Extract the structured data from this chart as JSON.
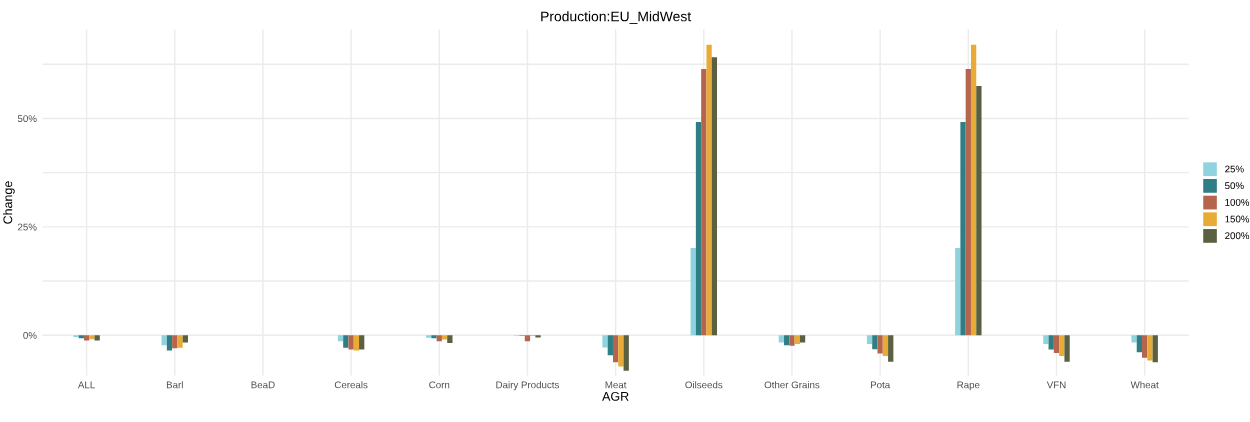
{
  "chart_data": {
    "type": "bar",
    "title": "Production:EU_MidWest",
    "xlabel": "AGR",
    "ylabel": "Change",
    "categories": [
      "ALL",
      "Barl",
      "BeaD",
      "Cereals",
      "Corn",
      "Dairy Products",
      "Meat",
      "Oilseeds",
      "Other Grains",
      "Pota",
      "Rape",
      "VFN",
      "Wheat"
    ],
    "series": [
      {
        "name": "25%",
        "color": "#8fd3de",
        "values": [
          -0.4,
          -2.3,
          0,
          -1.4,
          -0.6,
          -0.1,
          -2.8,
          20.1,
          -1.7,
          -2.0,
          20.1,
          -2.0,
          -1.7
        ]
      },
      {
        "name": "50%",
        "color": "#2e7f85",
        "values": [
          -0.7,
          -3.5,
          0,
          -2.9,
          -0.7,
          -0.1,
          -4.6,
          49.2,
          -2.3,
          -3.2,
          49.2,
          -3.3,
          -3.9
        ]
      },
      {
        "name": "100%",
        "color": "#b5654e",
        "values": [
          -1.2,
          -3.0,
          0,
          -3.3,
          -1.4,
          -1.4,
          -6.2,
          61.4,
          -2.4,
          -4.2,
          61.4,
          -4.1,
          -5.2
        ]
      },
      {
        "name": "150%",
        "color": "#e8ab35",
        "values": [
          -0.9,
          -2.9,
          0,
          -3.5,
          -1.0,
          -0.2,
          -7.2,
          67.0,
          -2.0,
          -4.8,
          67.0,
          -4.8,
          -5.8
        ]
      },
      {
        "name": "200%",
        "color": "#5a6040",
        "values": [
          -1.2,
          -1.7,
          0,
          -3.3,
          -1.8,
          -0.5,
          -8.2,
          64.1,
          -1.7,
          -6.1,
          57.5,
          -6.1,
          -6.2
        ]
      }
    ],
    "ylim": [
      -9.3,
      70.5
    ],
    "yticks": [
      {
        "value": 0,
        "label": "0%"
      },
      {
        "value": 12.5,
        "label": null
      },
      {
        "value": 25,
        "label": "25%"
      },
      {
        "value": 37.5,
        "label": null
      },
      {
        "value": 50,
        "label": "50%"
      },
      {
        "value": 62.5,
        "label": null
      }
    ],
    "grid": true,
    "legend": "right"
  }
}
